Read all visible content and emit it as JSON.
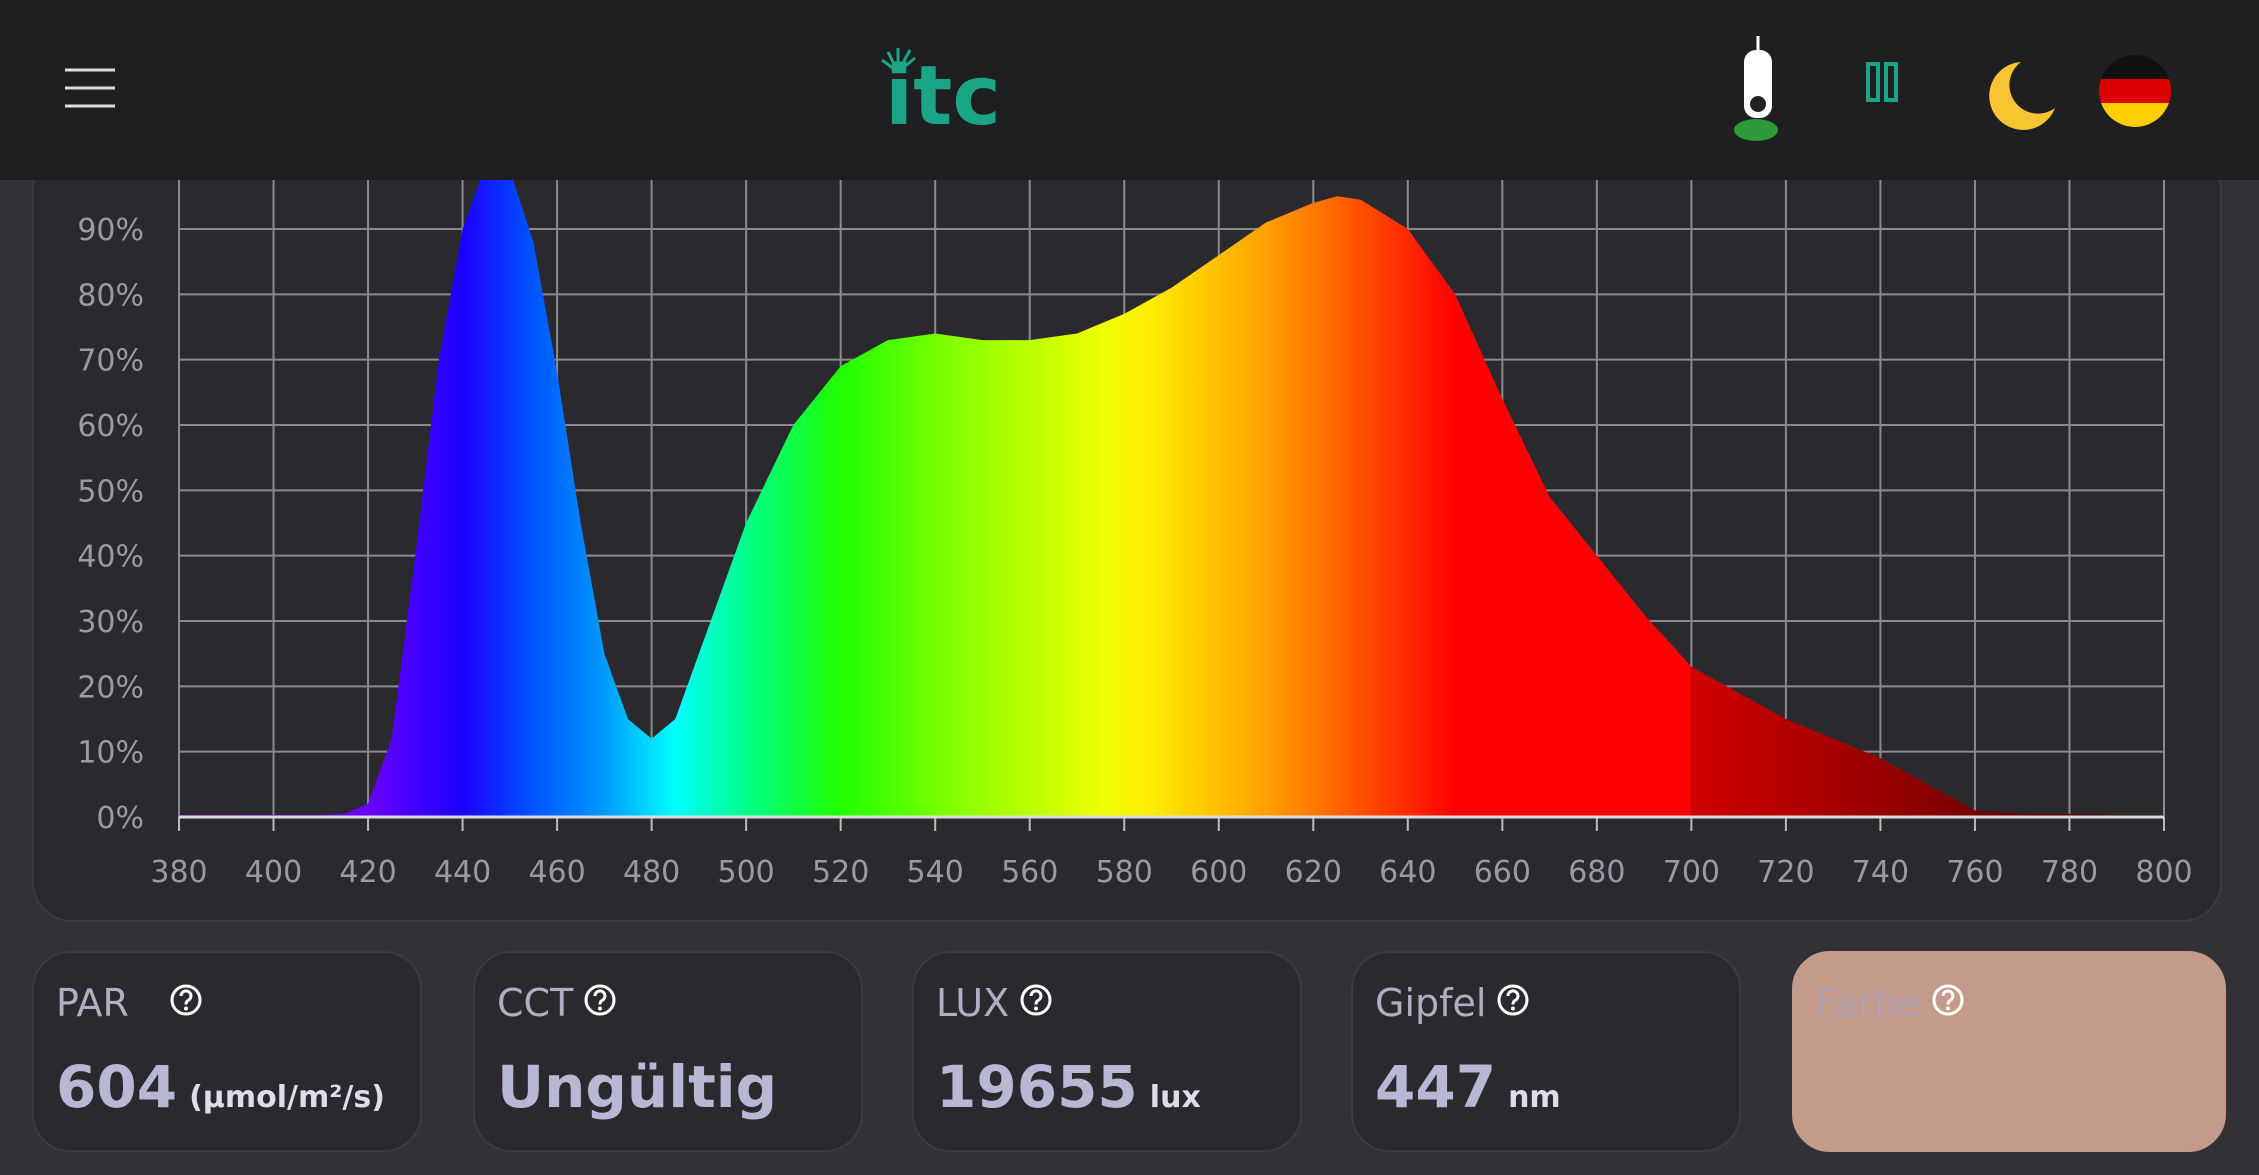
{
  "header": {
    "logo": "itc"
  },
  "chart_data": {
    "type": "area",
    "x": [
      380,
      390,
      400,
      410,
      415,
      420,
      425,
      430,
      435,
      440,
      445,
      450,
      455,
      460,
      465,
      470,
      475,
      480,
      485,
      490,
      500,
      510,
      520,
      530,
      540,
      550,
      560,
      570,
      580,
      590,
      600,
      610,
      620,
      625,
      630,
      640,
      650,
      660,
      670,
      680,
      690,
      700,
      710,
      720,
      730,
      740,
      750,
      760,
      770,
      780,
      790,
      800
    ],
    "values": [
      0.3,
      0.3,
      0.3,
      0.3,
      0.5,
      2,
      12,
      40,
      70,
      90,
      100,
      99,
      88,
      68,
      45,
      25,
      15,
      12,
      15,
      25,
      45,
      60,
      69,
      73,
      74,
      73,
      73,
      74,
      77,
      81,
      86,
      91,
      94,
      95,
      94.5,
      90,
      80,
      64,
      49,
      40,
      31,
      23,
      19,
      15,
      12,
      9,
      5,
      1,
      0.5,
      0.5,
      0.3,
      0.3
    ],
    "xlim": [
      380,
      800
    ],
    "xticks": [
      380,
      400,
      420,
      440,
      460,
      480,
      500,
      520,
      540,
      560,
      580,
      600,
      620,
      640,
      660,
      680,
      700,
      720,
      740,
      760,
      780,
      800
    ],
    "ylim": [
      0,
      97.5
    ],
    "yticks": [
      {
        "value": 0,
        "label": "0%"
      },
      {
        "value": 10,
        "label": "10%"
      },
      {
        "value": 20,
        "label": "20%"
      },
      {
        "value": 30,
        "label": "30%"
      },
      {
        "value": 40,
        "label": "40%"
      },
      {
        "value": 50,
        "label": "50%"
      },
      {
        "value": 60,
        "label": "60%"
      },
      {
        "value": 70,
        "label": "70%"
      },
      {
        "value": 80,
        "label": "80%"
      },
      {
        "value": 90,
        "label": "90%"
      }
    ],
    "grid": true
  },
  "cards": [
    {
      "label": "PAR",
      "value": 604,
      "unit": "(µmol/m²/s)"
    },
    {
      "label": "CCT",
      "value": "Ungültig"
    },
    {
      "label": "LUX",
      "value": 19655,
      "unit": "lux"
    },
    {
      "label": "Gipfel",
      "value": 447,
      "unit": "nm"
    },
    {
      "label": "Farbe",
      "color": "#c49a8a"
    }
  ]
}
